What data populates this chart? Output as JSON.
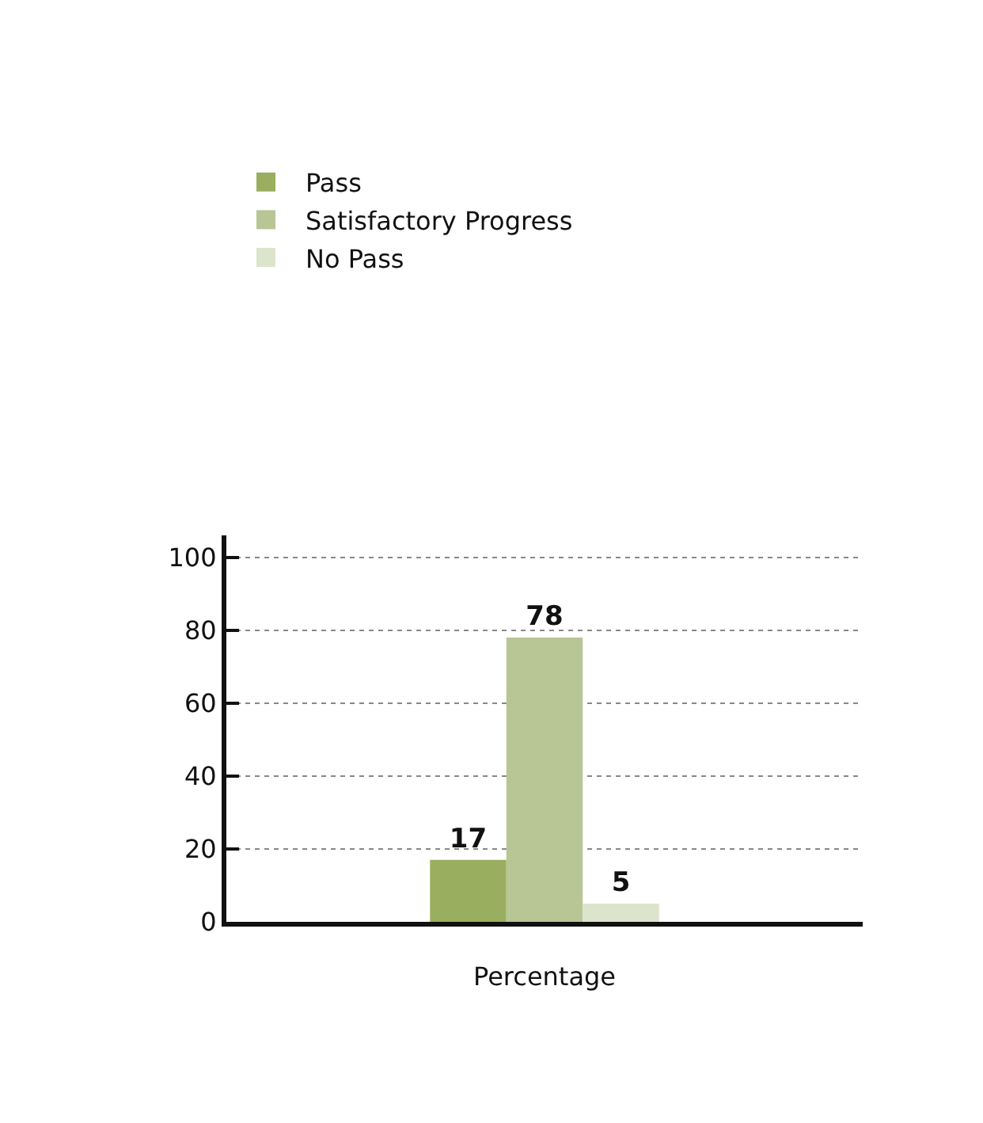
{
  "chart_data": {
    "type": "bar",
    "categories": [
      "Percentage"
    ],
    "series": [
      {
        "name": "Pass",
        "color": "#9aae5f",
        "values": [
          17
        ]
      },
      {
        "name": "Satisfactory Progress",
        "color": "#b8c595",
        "values": [
          78
        ]
      },
      {
        "name": "No Pass",
        "color": "#dce4cc",
        "values": [
          5
        ]
      }
    ],
    "ylim": [
      0,
      106
    ],
    "yticks": [
      0,
      20,
      40,
      60,
      80,
      100
    ],
    "grid": "y",
    "legend": "top left",
    "data_labels": true
  }
}
